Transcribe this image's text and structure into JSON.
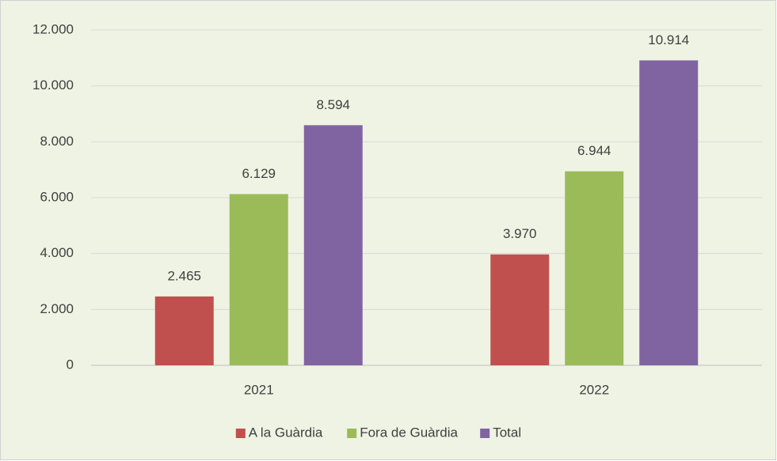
{
  "chart_data": {
    "type": "bar",
    "categories": [
      "2021",
      "2022"
    ],
    "series": [
      {
        "name": "A la Guàrdia",
        "color": "#c0504d",
        "values": [
          2465,
          3970
        ],
        "value_labels": [
          "2.465",
          "3.970"
        ]
      },
      {
        "name": "Fora de Guàrdia",
        "color": "#9bbb59",
        "values": [
          6129,
          6944
        ],
        "value_labels": [
          "6.129",
          "6.944"
        ]
      },
      {
        "name": "Total",
        "color": "#8064a2",
        "values": [
          8594,
          10914
        ],
        "value_labels": [
          "8.594",
          "10.914"
        ]
      }
    ],
    "ylim": [
      0,
      12000
    ],
    "yticks": [
      0,
      {
        "value": 2000,
        "label": "2.000"
      },
      {
        "value": 4000,
        "label": "4.000"
      },
      {
        "value": 6000,
        "label": "6.000"
      },
      {
        "value": 8000,
        "label": "8.000"
      },
      {
        "value": 10000,
        "label": "10.000"
      },
      {
        "value": 12000,
        "label": "12.000"
      }
    ],
    "grid": true,
    "legend": "bottom"
  }
}
